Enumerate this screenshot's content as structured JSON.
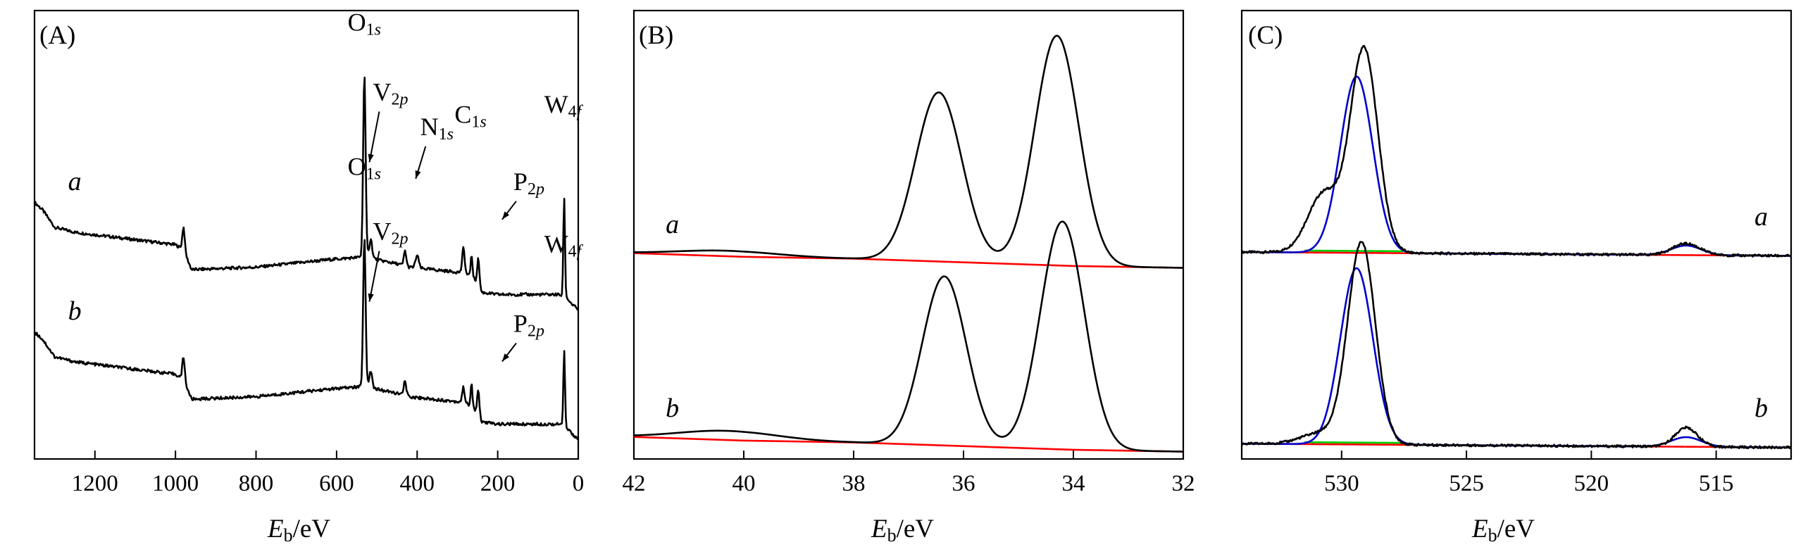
{
  "chart_data": [
    {
      "type": "line",
      "panel_label": "(A)",
      "xlabel_main": "E",
      "xlabel_sub": "b",
      "xlabel_unit": "/eV",
      "xlim": [
        1350,
        0
      ],
      "x_ticks": [
        1200,
        1000,
        800,
        600,
        400,
        200,
        0
      ],
      "yaxis_visible": false,
      "series": [
        {
          "name": "a",
          "color": "#000000",
          "offset": 0.52,
          "baseline": [
            [
              1350,
              0.43
            ],
            [
              1330,
              0.4
            ],
            [
              1300,
              0.33
            ],
            [
              1250,
              0.31
            ],
            [
              1000,
              0.26
            ],
            [
              980,
              0.24
            ],
            [
              960,
              0.16
            ],
            [
              800,
              0.17
            ],
            [
              620,
              0.2
            ],
            [
              540,
              0.21
            ],
            [
              530,
              0.23
            ],
            [
              500,
              0.2
            ],
            [
              440,
              0.18
            ],
            [
              420,
              0.17
            ],
            [
              300,
              0.15
            ],
            [
              290,
              0.15
            ],
            [
              260,
              0.13
            ],
            [
              245,
              0.07
            ],
            [
              200,
              0.06
            ],
            [
              50,
              0.06
            ],
            [
              30,
              0.05
            ],
            [
              15,
              0.02
            ],
            [
              0,
              0.0
            ]
          ],
          "peaks": [
            [
              980,
              0.09,
              3
            ],
            [
              531,
              0.72,
              3
            ],
            [
              515,
              0.07,
              3
            ],
            [
              400,
              0.05,
              4
            ],
            [
              430,
              0.06,
              3
            ],
            [
              285,
              0.1,
              3
            ],
            [
              265,
              0.09,
              2
            ],
            [
              248,
              0.12,
              3
            ],
            [
              35,
              0.4,
              2
            ]
          ]
        },
        {
          "name": "b",
          "color": "#000000",
          "offset": 0.0,
          "baseline": [
            [
              1350,
              0.43
            ],
            [
              1330,
              0.4
            ],
            [
              1300,
              0.33
            ],
            [
              1250,
              0.31
            ],
            [
              1000,
              0.26
            ],
            [
              980,
              0.24
            ],
            [
              960,
              0.16
            ],
            [
              800,
              0.17
            ],
            [
              620,
              0.2
            ],
            [
              540,
              0.21
            ],
            [
              530,
              0.23
            ],
            [
              500,
              0.2
            ],
            [
              440,
              0.18
            ],
            [
              420,
              0.17
            ],
            [
              300,
              0.15
            ],
            [
              290,
              0.15
            ],
            [
              260,
              0.13
            ],
            [
              245,
              0.07
            ],
            [
              200,
              0.06
            ],
            [
              50,
              0.06
            ],
            [
              30,
              0.05
            ],
            [
              15,
              0.02
            ],
            [
              0,
              0.0
            ]
          ],
          "peaks": [
            [
              980,
              0.09,
              3
            ],
            [
              531,
              0.58,
              3
            ],
            [
              515,
              0.06,
              3
            ],
            [
              430,
              0.06,
              3
            ],
            [
              285,
              0.06,
              3
            ],
            [
              265,
              0.09,
              2
            ],
            [
              248,
              0.11,
              3
            ],
            [
              35,
              0.3,
              2
            ]
          ]
        }
      ],
      "peak_labels": [
        {
          "main": "O",
          "sub": "1s",
          "x": 531,
          "y": 1.64
        },
        {
          "main": "V",
          "sub": "2p",
          "x": 515,
          "y": 1.36
        },
        {
          "main": "N",
          "sub": "1s",
          "x": 400,
          "y": 1.22
        },
        {
          "main": "C",
          "sub": "1s",
          "x": 285,
          "y": 1.27
        },
        {
          "main": "P",
          "sub": "2p",
          "x": 133,
          "y": 1.0
        },
        {
          "main": "W",
          "sub": "4f",
          "x": 35,
          "y": 1.31
        },
        {
          "main": "O",
          "sub": "1s",
          "x": 531,
          "y": 1.06
        },
        {
          "main": "V",
          "sub": "2p",
          "x": 515,
          "y": 0.8
        },
        {
          "main": "P",
          "sub": "2p",
          "x": 133,
          "y": 0.43
        },
        {
          "main": "W",
          "sub": "4f",
          "x": 35,
          "y": 0.75
        }
      ],
      "ylim": [
        -0.08,
        1.72
      ]
    },
    {
      "type": "line",
      "panel_label": "(B)",
      "xlabel_main": "E",
      "xlabel_sub": "b",
      "xlabel_unit": "/eV",
      "xlim": [
        42,
        32
      ],
      "x_ticks": [
        42,
        40,
        38,
        36,
        34,
        32
      ],
      "yaxis_visible": false,
      "series": [
        {
          "name": "a",
          "color": "#000000",
          "offset": 1.0,
          "background": [
            [
              42,
              0.06
            ],
            [
              40,
              0.04
            ],
            [
              38,
              0.03
            ],
            [
              36,
              0.01
            ],
            [
              34,
              -0.01
            ],
            [
              32,
              -0.02
            ]
          ],
          "peaks": [
            [
              40.3,
              0.03,
              0.9
            ],
            [
              36.45,
              0.92,
              0.42
            ],
            [
              34.3,
              1.25,
              0.4
            ]
          ]
        },
        {
          "name": "b",
          "color": "#000000",
          "offset": 0.0,
          "background": [
            [
              42,
              0.06
            ],
            [
              40,
              0.04
            ],
            [
              38,
              0.03
            ],
            [
              36,
              0.01
            ],
            [
              34,
              -0.01
            ],
            [
              32,
              -0.02
            ]
          ],
          "peaks": [
            [
              40.3,
              0.05,
              0.9
            ],
            [
              36.35,
              0.92,
              0.4
            ],
            [
              34.2,
              1.24,
              0.4
            ]
          ]
        }
      ],
      "background_color": "#ff0000",
      "ylim": [
        -0.06,
        2.38
      ]
    },
    {
      "type": "line",
      "panel_label": "(C)",
      "xlabel_main": "E",
      "xlabel_sub": "b",
      "xlabel_unit": "/eV",
      "xlim": [
        534,
        512
      ],
      "x_ticks": [
        530,
        525,
        520,
        515
      ],
      "yaxis_visible": false,
      "series": [
        {
          "name": "a",
          "color": "#000000",
          "offset": 1.0,
          "peaks": [
            [
              529.1,
              1.06,
              0.55
            ],
            [
              530.7,
              0.31,
              0.65
            ],
            [
              516.2,
              0.06,
              0.55
            ]
          ]
        },
        {
          "name": "b",
          "color": "#000000",
          "offset": 0.0,
          "peaks": [
            [
              529.2,
              1.05,
              0.55
            ],
            [
              530.8,
              0.06,
              0.8
            ],
            [
              516.2,
              0.1,
              0.45
            ]
          ]
        }
      ],
      "fit_color": "#0000cc",
      "background_color": "#ff0000",
      "component_color": "#00cc00",
      "fit_peaks": [
        [
          529.4,
          0.92,
          0.65
        ],
        [
          516.2,
          0.05,
          0.6
        ]
      ],
      "ylim": [
        -0.06,
        2.28
      ]
    }
  ]
}
